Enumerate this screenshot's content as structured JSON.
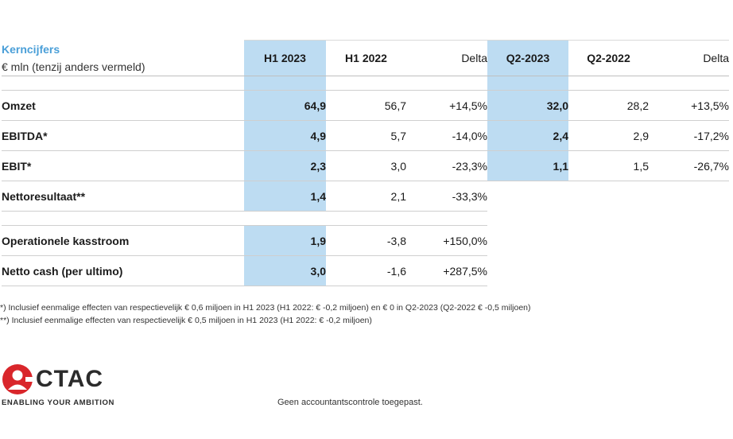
{
  "header": {
    "title": "Kerncijfers",
    "subtitle": "€ mln (tenzij anders vermeld)",
    "columns": [
      "H1 2023",
      "H1 2022",
      "Delta",
      "Q2-2023",
      "Q2-2022",
      "Delta"
    ]
  },
  "rows": [
    {
      "label": "Omzet",
      "h1_2023": "64,9",
      "h1_2022": "56,7",
      "delta_h1": "+14,5%",
      "q2_2023": "32,0",
      "q2_2022": "28,2",
      "delta_q2": "+13,5%"
    },
    {
      "label": "EBITDA*",
      "h1_2023": "4,9",
      "h1_2022": "5,7",
      "delta_h1": "-14,0%",
      "q2_2023": "2,4",
      "q2_2022": "2,9",
      "delta_q2": "-17,2%"
    },
    {
      "label": "EBIT*",
      "h1_2023": "2,3",
      "h1_2022": "3,0",
      "delta_h1": "-23,3%",
      "q2_2023": "1,1",
      "q2_2022": "1,5",
      "delta_q2": "-26,7%"
    },
    {
      "label": "Nettoresultaat**",
      "h1_2023": "1,4",
      "h1_2022": "2,1",
      "delta_h1": "-33,3%"
    },
    {
      "label": "Operationele kasstroom",
      "h1_2023": "1,9",
      "h1_2022": "-3,8",
      "delta_h1": "+150,0%"
    },
    {
      "label": "Netto cash (per ultimo)",
      "h1_2023": "3,0",
      "h1_2022": "-1,6",
      "delta_h1": "+287,5%"
    }
  ],
  "footnotes": [
    "*) Inclusief eenmalige effecten van respectievelijk € 0,6 miljoen in H1 2023 (H1 2022: € -0,2 miljoen) en € 0 in Q2-2023 (Q2-2022 € -0,5 miljoen)",
    "**) Inclusief eenmalige effecten van respectievelijk € 0,5 miljoen in H1 2023 (H1 2022: € -0,2 miljoen)"
  ],
  "logo": {
    "name": "CTAC",
    "tagline": "ENABLING YOUR AMBITION"
  },
  "audit_note": "Geen accountantscontrole toegepast.",
  "colors": {
    "highlight": "#bddcf2",
    "title_blue": "#4a9fd8",
    "logo_red": "#d9262b"
  }
}
